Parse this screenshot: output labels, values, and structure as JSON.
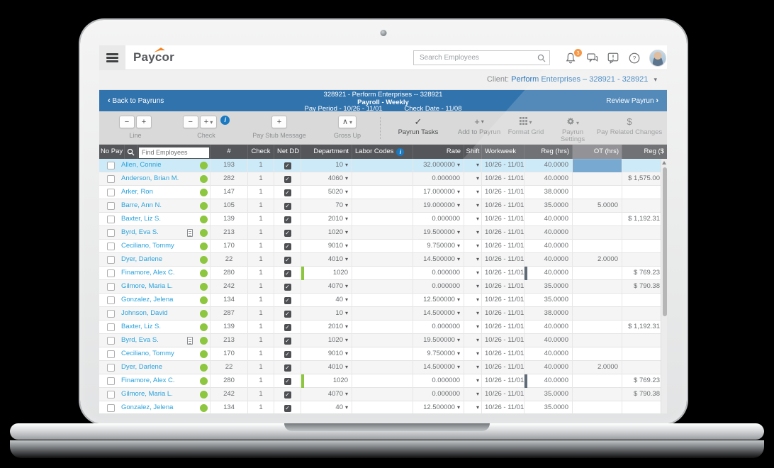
{
  "brand": {
    "logo_text": "Paycor"
  },
  "topbar": {
    "search_placeholder": "Search Employees",
    "notification_count": "3",
    "icons": [
      "bell-icon",
      "chat-icon",
      "alert-bubble-icon",
      "help-icon",
      "avatar"
    ]
  },
  "client_bar": {
    "label": "Client:",
    "value": "Perform Enterprises – 328921 - 328921"
  },
  "payrun_bar": {
    "back": "Back to Payruns",
    "company": "328921 - Perform Enterprises -- 328921",
    "payroll": "Payroll - Weekly",
    "pay_period": "Pay Period - 10/26 - 11/01",
    "check_date": "Check Date - 11/08",
    "review": "Review Payrun"
  },
  "glyphs": {
    "minus": "−",
    "plus": "+",
    "caret": "▾",
    "gross_up": "∧",
    "check": "✓",
    "dollar": "$",
    "info": "i",
    "back_chevron": "‹",
    "fwd_chevron": "›",
    "up_arrow": "▲"
  },
  "toolbar": {
    "groups": [
      {
        "label": "Line"
      },
      {
        "label": "Check"
      },
      {
        "label": "Pay Stub Message"
      },
      {
        "label": "Gross Up"
      }
    ],
    "tabs": [
      {
        "label": "Payrun Tasks"
      },
      {
        "label": "Add to Payrun"
      },
      {
        "label": "Format Grid"
      },
      {
        "label": "Payrun Settings"
      },
      {
        "label": "Pay Related Changes"
      }
    ]
  },
  "grid": {
    "headers": {
      "no_pay": "No Pay",
      "find_placeholder": "Find Employees",
      "num": "#",
      "check": "Check",
      "net_dd": "Net DD",
      "department": "Department",
      "labor_codes": "Labor Codes",
      "rate": "Rate",
      "shift": "Shift",
      "workweek": "Workweek",
      "reg_hrs": "Reg (hrs)",
      "ot_hrs": "OT (hrs)",
      "reg_amt": "Reg ($"
    },
    "rows": [
      {
        "name": "Allen, Connie",
        "doc": false,
        "num": "193",
        "check": "1",
        "net_dd": true,
        "dept": "10",
        "dept_caret": true,
        "dept_bar": false,
        "rate": "32.000000",
        "rate_caret": true,
        "week": "10/26 - 11/01",
        "reg": "40.0000",
        "reg_bar": false,
        "ot": "",
        "amt": "",
        "selected": true
      },
      {
        "name": "Anderson, Brian M.",
        "doc": false,
        "num": "282",
        "check": "1",
        "net_dd": true,
        "dept": "4060",
        "dept_caret": true,
        "dept_bar": false,
        "rate": "0.000000",
        "rate_caret": false,
        "week": "10/26 - 11/01",
        "reg": "40.0000",
        "reg_bar": false,
        "ot": "",
        "amt": "$ 1,575.00",
        "selected": false
      },
      {
        "name": "Arker, Ron",
        "doc": false,
        "num": "147",
        "check": "1",
        "net_dd": true,
        "dept": "5020",
        "dept_caret": true,
        "dept_bar": false,
        "rate": "17.000000",
        "rate_caret": true,
        "week": "10/26 - 11/01",
        "reg": "38.0000",
        "reg_bar": false,
        "ot": "",
        "amt": "",
        "selected": false
      },
      {
        "name": "Barre, Ann N.",
        "doc": false,
        "num": "105",
        "check": "1",
        "net_dd": true,
        "dept": "70",
        "dept_caret": true,
        "dept_bar": false,
        "rate": "19.000000",
        "rate_caret": true,
        "week": "10/26 - 11/01",
        "reg": "35.0000",
        "reg_bar": false,
        "ot": "5.0000",
        "amt": "",
        "selected": false
      },
      {
        "name": "Baxter, Liz S.",
        "doc": false,
        "num": "139",
        "check": "1",
        "net_dd": true,
        "dept": "2010",
        "dept_caret": true,
        "dept_bar": false,
        "rate": "0.000000",
        "rate_caret": false,
        "week": "10/26 - 11/01",
        "reg": "40.0000",
        "reg_bar": false,
        "ot": "",
        "amt": "$ 1,192.31",
        "selected": false
      },
      {
        "name": "Byrd, Eva S.",
        "doc": true,
        "num": "213",
        "check": "1",
        "net_dd": true,
        "dept": "1020",
        "dept_caret": true,
        "dept_bar": false,
        "rate": "19.500000",
        "rate_caret": true,
        "week": "10/26 - 11/01",
        "reg": "40.0000",
        "reg_bar": false,
        "ot": "",
        "amt": "",
        "selected": false
      },
      {
        "name": "Ceciliano, Tommy",
        "doc": false,
        "num": "170",
        "check": "1",
        "net_dd": true,
        "dept": "9010",
        "dept_caret": true,
        "dept_bar": false,
        "rate": "9.750000",
        "rate_caret": true,
        "week": "10/26 - 11/01",
        "reg": "40.0000",
        "reg_bar": false,
        "ot": "",
        "amt": "",
        "selected": false
      },
      {
        "name": "Dyer, Darlene",
        "doc": false,
        "num": "22",
        "check": "1",
        "net_dd": true,
        "dept": "4010",
        "dept_caret": true,
        "dept_bar": false,
        "rate": "14.500000",
        "rate_caret": true,
        "week": "10/26 - 11/01",
        "reg": "40.0000",
        "reg_bar": false,
        "ot": "2.0000",
        "amt": "",
        "selected": false
      },
      {
        "name": "Finamore, Alex C.",
        "doc": false,
        "num": "280",
        "check": "1",
        "net_dd": true,
        "dept": "1020",
        "dept_caret": false,
        "dept_bar": true,
        "rate": "0.000000",
        "rate_caret": false,
        "week": "10/26 - 11/01",
        "reg": "40.0000",
        "reg_bar": true,
        "ot": "",
        "amt": "$ 769.23",
        "selected": false
      },
      {
        "name": "Gilmore, Maria L.",
        "doc": false,
        "num": "242",
        "check": "1",
        "net_dd": true,
        "dept": "4070",
        "dept_caret": true,
        "dept_bar": false,
        "rate": "0.000000",
        "rate_caret": false,
        "week": "10/26 - 11/01",
        "reg": "35.0000",
        "reg_bar": false,
        "ot": "",
        "amt": "$ 790.38",
        "selected": false
      },
      {
        "name": "Gonzalez, Jelena",
        "doc": false,
        "num": "134",
        "check": "1",
        "net_dd": true,
        "dept": "40",
        "dept_caret": true,
        "dept_bar": false,
        "rate": "12.500000",
        "rate_caret": true,
        "week": "10/26 - 11/01",
        "reg": "35.0000",
        "reg_bar": false,
        "ot": "",
        "amt": "",
        "selected": false
      },
      {
        "name": "Johnson, David",
        "doc": false,
        "num": "287",
        "check": "1",
        "net_dd": true,
        "dept": "10",
        "dept_caret": true,
        "dept_bar": false,
        "rate": "14.500000",
        "rate_caret": true,
        "week": "10/26 - 11/01",
        "reg": "38.0000",
        "reg_bar": false,
        "ot": "",
        "amt": "",
        "selected": false
      },
      {
        "name": "Baxter, Liz S.",
        "doc": false,
        "num": "139",
        "check": "1",
        "net_dd": true,
        "dept": "2010",
        "dept_caret": true,
        "dept_bar": false,
        "rate": "0.000000",
        "rate_caret": false,
        "week": "10/26 - 11/01",
        "reg": "40.0000",
        "reg_bar": false,
        "ot": "",
        "amt": "$ 1,192.31",
        "selected": false
      },
      {
        "name": "Byrd, Eva S.",
        "doc": true,
        "num": "213",
        "check": "1",
        "net_dd": true,
        "dept": "1020",
        "dept_caret": true,
        "dept_bar": false,
        "rate": "19.500000",
        "rate_caret": true,
        "week": "10/26 - 11/01",
        "reg": "40.0000",
        "reg_bar": false,
        "ot": "",
        "amt": "",
        "selected": false
      },
      {
        "name": "Ceciliano, Tommy",
        "doc": false,
        "num": "170",
        "check": "1",
        "net_dd": true,
        "dept": "9010",
        "dept_caret": true,
        "dept_bar": false,
        "rate": "9.750000",
        "rate_caret": true,
        "week": "10/26 - 11/01",
        "reg": "40.0000",
        "reg_bar": false,
        "ot": "",
        "amt": "",
        "selected": false
      },
      {
        "name": "Dyer, Darlene",
        "doc": false,
        "num": "22",
        "check": "1",
        "net_dd": true,
        "dept": "4010",
        "dept_caret": true,
        "dept_bar": false,
        "rate": "14.500000",
        "rate_caret": true,
        "week": "10/26 - 11/01",
        "reg": "40.0000",
        "reg_bar": false,
        "ot": "2.0000",
        "amt": "",
        "selected": false
      },
      {
        "name": "Finamore, Alex C.",
        "doc": false,
        "num": "280",
        "check": "1",
        "net_dd": true,
        "dept": "1020",
        "dept_caret": false,
        "dept_bar": true,
        "rate": "0.000000",
        "rate_caret": false,
        "week": "10/26 - 11/01",
        "reg": "40.0000",
        "reg_bar": true,
        "ot": "",
        "amt": "$ 769.23",
        "selected": false
      },
      {
        "name": "Gilmore, Maria L.",
        "doc": false,
        "num": "242",
        "check": "1",
        "net_dd": true,
        "dept": "4070",
        "dept_caret": true,
        "dept_bar": false,
        "rate": "0.000000",
        "rate_caret": false,
        "week": "10/26 - 11/01",
        "reg": "35.0000",
        "reg_bar": false,
        "ot": "",
        "amt": "$ 790.38",
        "selected": false
      },
      {
        "name": "Gonzalez, Jelena",
        "doc": false,
        "num": "134",
        "check": "1",
        "net_dd": true,
        "dept": "40",
        "dept_caret": true,
        "dept_bar": false,
        "rate": "12.500000",
        "rate_caret": true,
        "week": "10/26 - 11/01",
        "reg": "35.0000",
        "reg_bar": false,
        "ot": "",
        "amt": "",
        "selected": false
      }
    ]
  },
  "colors": {
    "accent_blue": "#3173ad",
    "link_blue": "#2ba2db",
    "status_green": "#8dc63f",
    "header_gray": "#55565a",
    "selected_row": "#cdeaf8",
    "selected_cell": "#78a9d1",
    "badge_orange": "#f58220"
  }
}
